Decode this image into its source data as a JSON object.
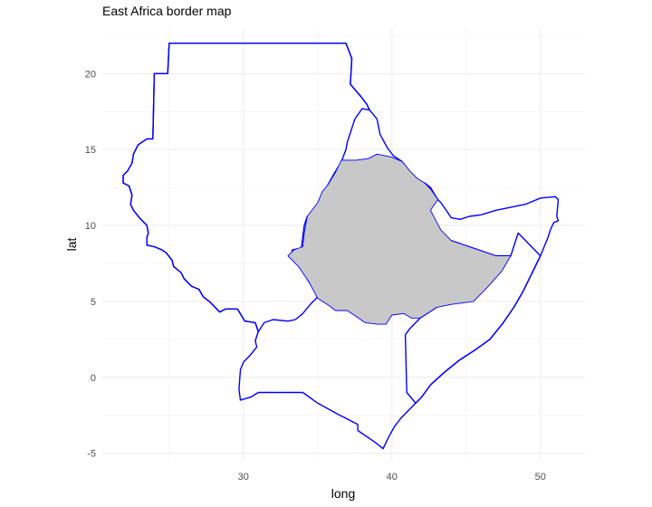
{
  "title": "East Africa border map",
  "chart_data": {
    "type": "map",
    "title": "East Africa border map",
    "xlabel": "long",
    "ylabel": "lat",
    "xlim": [
      20.5,
      53
    ],
    "ylim": [
      -5.5,
      23
    ],
    "x_ticks": [
      30,
      40,
      50
    ],
    "y_ticks": [
      -5,
      0,
      5,
      10,
      15,
      20
    ],
    "grid": true,
    "colors": {
      "border": "#0000ff",
      "highlight_fill": "#c8c8c8",
      "grid": "#ebebeb"
    },
    "highlighted_region_fill": "#c8c8c8",
    "regions": [
      {
        "key": "north",
        "highlight": false,
        "coords": [
          [
            24.9,
            20
          ],
          [
            25,
            22
          ],
          [
            36.9,
            22
          ],
          [
            37.3,
            21
          ],
          [
            37.2,
            19.3
          ],
          [
            37.9,
            18.5
          ],
          [
            38.3,
            18
          ],
          [
            38.5,
            17.6
          ],
          [
            39,
            17
          ],
          [
            39.2,
            16
          ],
          [
            39.7,
            15.1
          ],
          [
            40.1,
            14.6
          ],
          [
            40.7,
            14.2
          ],
          [
            41.2,
            13.5
          ],
          [
            41.7,
            13
          ],
          [
            42.2,
            12.8
          ],
          [
            42.6,
            12.5
          ],
          [
            42.9,
            12
          ],
          [
            43.1,
            11.7
          ],
          [
            43.3,
            11.5
          ],
          [
            44,
            10.5
          ],
          [
            44.6,
            10.4
          ],
          [
            45.2,
            10.6
          ],
          [
            46,
            10.7
          ],
          [
            47,
            11
          ],
          [
            48,
            11.2
          ],
          [
            49,
            11.4
          ],
          [
            50,
            11.8
          ],
          [
            51,
            11.9
          ],
          [
            51.2,
            11.7
          ],
          [
            51.1,
            10.6
          ],
          [
            51.2,
            10.3
          ],
          [
            50.9,
            10.2
          ],
          [
            50.7,
            9.8
          ],
          [
            50.5,
            9.2
          ],
          [
            50,
            8
          ],
          [
            49.4,
            6.8
          ],
          [
            48.8,
            5.6
          ],
          [
            48.2,
            4.6
          ],
          [
            47.5,
            3.6
          ],
          [
            46.6,
            2.5
          ],
          [
            45.6,
            1.8
          ],
          [
            44.5,
            1.1
          ],
          [
            43.5,
            0.3
          ],
          [
            42.6,
            -0.5
          ],
          [
            42,
            -1.3
          ],
          [
            41.6,
            -1.7
          ],
          [
            41,
            -2.3
          ],
          [
            40.6,
            -2.7
          ],
          [
            40.2,
            -3.2
          ],
          [
            39.8,
            -3.9
          ],
          [
            39.4,
            -4.7
          ],
          [
            38.9,
            -4.3
          ],
          [
            37.7,
            -3.5
          ],
          [
            37.7,
            -3.1
          ],
          [
            36.5,
            -2.5
          ],
          [
            35,
            -1.7
          ],
          [
            34,
            -1
          ],
          [
            31,
            -1
          ],
          [
            30.5,
            -1.3
          ],
          [
            29.8,
            -1.5
          ],
          [
            29.7,
            -0.8
          ],
          [
            29.8,
            0.5
          ],
          [
            30,
            1
          ],
          [
            30.5,
            1.5
          ],
          [
            30.9,
            2
          ],
          [
            30.8,
            2.4
          ],
          [
            31,
            3
          ],
          [
            30.8,
            3.6
          ],
          [
            30.1,
            3.7
          ],
          [
            29.6,
            4.5
          ],
          [
            28.8,
            4.5
          ],
          [
            28.4,
            4.3
          ],
          [
            27.7,
            5
          ],
          [
            27.3,
            5.3
          ],
          [
            27,
            5.8
          ],
          [
            26.5,
            6
          ],
          [
            26,
            6.5
          ],
          [
            25.8,
            6.9
          ],
          [
            25.3,
            7.3
          ],
          [
            25.2,
            7.7
          ],
          [
            24.8,
            8.2
          ],
          [
            24.5,
            8.4
          ],
          [
            24,
            8.6
          ],
          [
            23.5,
            8.7
          ],
          [
            23.5,
            9.2
          ],
          [
            23.6,
            9.5
          ],
          [
            23.5,
            10
          ],
          [
            23,
            10.5
          ],
          [
            22.6,
            11
          ],
          [
            22.4,
            11.4
          ],
          [
            22.5,
            12
          ],
          [
            22.3,
            12.6
          ],
          [
            21.9,
            12.8
          ],
          [
            21.9,
            13.3
          ],
          [
            22.2,
            13.6
          ],
          [
            22.5,
            14.1
          ],
          [
            22.6,
            14.7
          ],
          [
            22.9,
            15.3
          ],
          [
            23.5,
            15.7
          ],
          [
            23.9,
            15.7
          ],
          [
            24,
            20
          ]
        ]
      },
      {
        "key": "south-central",
        "highlight": false,
        "coords": [
          [
            24,
            8.6
          ],
          [
            24.5,
            8.4
          ],
          [
            24.8,
            8.2
          ],
          [
            25.2,
            7.7
          ],
          [
            25.3,
            7.3
          ],
          [
            25.8,
            6.9
          ],
          [
            26,
            6.5
          ],
          [
            26.5,
            6
          ],
          [
            27,
            5.8
          ],
          [
            27.3,
            5.3
          ],
          [
            27.7,
            5
          ],
          [
            28.4,
            4.3
          ],
          [
            28.8,
            4.5
          ],
          [
            29.6,
            4.5
          ],
          [
            30.1,
            3.7
          ],
          [
            30.8,
            3.6
          ],
          [
            31,
            3
          ],
          [
            31.4,
            3.6
          ],
          [
            32,
            3.8
          ],
          [
            33,
            3.7
          ],
          [
            33.5,
            3.8
          ],
          [
            34,
            4.2
          ],
          [
            34.5,
            4.8
          ],
          [
            35,
            5.3
          ],
          [
            34.8,
            5.7
          ],
          [
            34.4,
            6.3
          ],
          [
            33.7,
            7.5
          ],
          [
            33.2,
            8
          ],
          [
            33.3,
            8.4
          ],
          [
            33.9,
            8.5
          ],
          [
            34,
            9.3
          ],
          [
            34.1,
            10
          ],
          [
            34.3,
            10.6
          ],
          [
            35,
            11
          ],
          [
            35.4,
            11.8
          ],
          [
            35.7,
            12.7
          ],
          [
            36.1,
            13.4
          ],
          [
            36.6,
            14.2
          ],
          [
            36.9,
            15
          ],
          [
            37,
            15.5
          ],
          [
            37.5,
            17
          ],
          [
            38,
            17.7
          ],
          [
            38.5,
            17.6
          ],
          [
            38.3,
            18
          ],
          [
            37.9,
            18.5
          ],
          [
            37.2,
            19.3
          ],
          [
            37.3,
            21
          ],
          [
            36.9,
            22
          ],
          [
            25,
            22
          ],
          [
            24.9,
            20
          ],
          [
            24,
            20
          ],
          [
            23.9,
            15.7
          ],
          [
            23.5,
            15.7
          ],
          [
            22.9,
            15.3
          ],
          [
            22.6,
            14.7
          ],
          [
            22.5,
            14.1
          ],
          [
            22.2,
            13.6
          ],
          [
            21.9,
            13.3
          ],
          [
            21.9,
            12.8
          ],
          [
            22.3,
            12.6
          ],
          [
            22.5,
            12
          ],
          [
            22.4,
            11.4
          ],
          [
            22.6,
            11
          ],
          [
            23,
            10.5
          ],
          [
            23.5,
            10
          ],
          [
            23.6,
            9.5
          ],
          [
            23.5,
            9.2
          ],
          [
            23.5,
            8.7
          ],
          [
            24,
            8.6
          ]
        ]
      },
      {
        "key": "center",
        "highlight": true,
        "coords": [
          [
            33,
            8
          ],
          [
            33.4,
            8.4
          ],
          [
            34,
            8.6
          ],
          [
            34.1,
            9.5
          ],
          [
            34.3,
            10.6
          ],
          [
            35,
            11.5
          ],
          [
            35.3,
            12.2
          ],
          [
            35.7,
            12.7
          ],
          [
            36.2,
            13.5
          ],
          [
            36.6,
            14.3
          ],
          [
            37.6,
            14.3
          ],
          [
            38.4,
            14.4
          ],
          [
            39,
            14.7
          ],
          [
            40,
            14.5
          ],
          [
            40.7,
            14.2
          ],
          [
            41.2,
            13.6
          ],
          [
            41.7,
            13.1
          ],
          [
            42.2,
            12.8
          ],
          [
            42.6,
            12.4
          ],
          [
            43.1,
            11.7
          ],
          [
            42.8,
            11.3
          ],
          [
            42.6,
            11
          ],
          [
            43.3,
            9.7
          ],
          [
            44,
            9
          ],
          [
            45.5,
            8.5
          ],
          [
            47,
            8
          ],
          [
            48,
            8
          ],
          [
            47.4,
            7
          ],
          [
            46.5,
            6
          ],
          [
            45.5,
            5
          ],
          [
            44,
            4.8
          ],
          [
            43,
            4.6
          ],
          [
            41.9,
            3.9
          ],
          [
            41.3,
            3.9
          ],
          [
            40.8,
            4.2
          ],
          [
            40,
            4.1
          ],
          [
            39.6,
            3.5
          ],
          [
            39,
            3.5
          ],
          [
            38.2,
            3.6
          ],
          [
            37,
            4.4
          ],
          [
            36.2,
            4.4
          ],
          [
            35.8,
            4.7
          ],
          [
            35,
            5.2
          ],
          [
            34.4,
            6.3
          ],
          [
            33.7,
            7.3
          ],
          [
            33,
            8
          ]
        ]
      },
      {
        "key": "east",
        "highlight": false,
        "coords": [
          [
            41.9,
            3.9
          ],
          [
            41.2,
            3.2
          ],
          [
            40.9,
            2.8
          ],
          [
            41,
            -1
          ],
          [
            41.6,
            -1.7
          ],
          [
            42,
            -1.3
          ],
          [
            42.6,
            -0.5
          ],
          [
            43.5,
            0.3
          ],
          [
            44.5,
            1.1
          ],
          [
            45.6,
            1.8
          ],
          [
            46.6,
            2.5
          ],
          [
            47.5,
            3.6
          ],
          [
            48.2,
            4.6
          ],
          [
            48.8,
            5.6
          ],
          [
            49.4,
            6.8
          ],
          [
            50,
            8
          ],
          [
            49,
            9
          ],
          [
            48.5,
            9.5
          ],
          [
            48,
            8
          ],
          [
            47,
            8
          ],
          [
            45.5,
            8.5
          ],
          [
            44,
            9
          ],
          [
            43,
            4.6
          ],
          [
            41.9,
            3.9
          ]
        ]
      }
    ]
  }
}
